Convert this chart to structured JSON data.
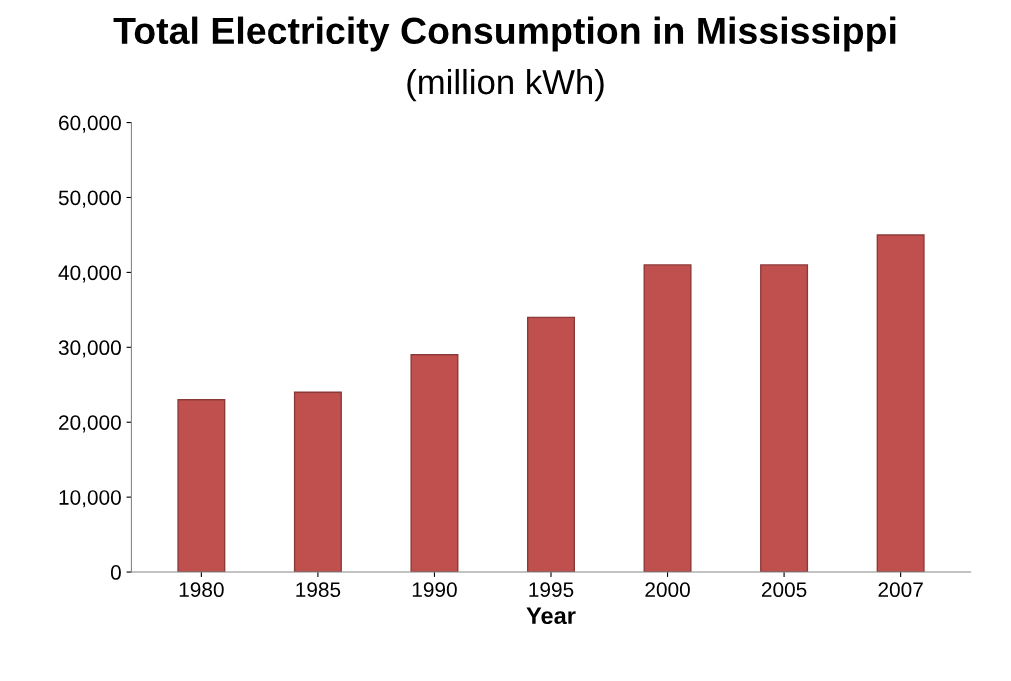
{
  "chart_data": {
    "type": "bar",
    "title": "Total Electricity Consumption in Mississippi",
    "subtitle": "(million kWh)",
    "xlabel": "Year",
    "categories": [
      "1980",
      "1985",
      "1990",
      "1995",
      "2000",
      "2005",
      "2007"
    ],
    "values": [
      23000,
      24000,
      29000,
      34000,
      41000,
      41000,
      45000
    ],
    "color": "#c0504d",
    "ylim": [
      0,
      60000
    ],
    "yticks": [
      {
        "value": 0,
        "label": "0"
      },
      {
        "value": 10000,
        "label": "10,000"
      },
      {
        "value": 20000,
        "label": "20,000"
      },
      {
        "value": 30000,
        "label": "30,000"
      },
      {
        "value": 40000,
        "label": "40,000"
      },
      {
        "value": 50000,
        "label": "50,000"
      },
      {
        "value": 60000,
        "label": "60,000"
      }
    ],
    "grid": false,
    "legend": false
  }
}
